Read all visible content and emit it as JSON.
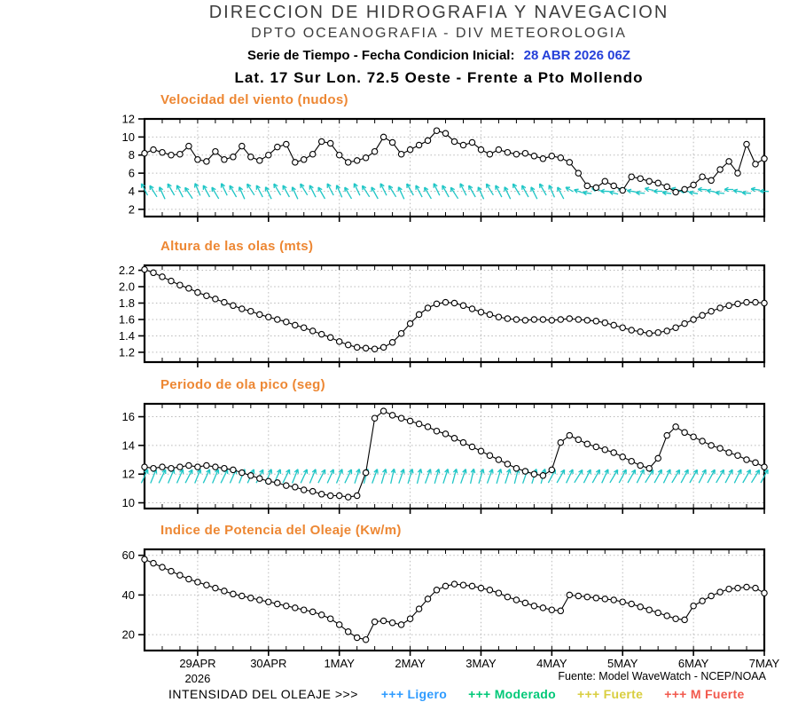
{
  "header": {
    "line1": "DIRECCION DE HIDROGRAFIA Y NAVEGACION",
    "line2": "DPTO OCEANOGRAFIA - DIV METEOROLOGIA",
    "line3_label": "Serie de Tiempo - Fecha Condicion Inicial:",
    "line3_value": "28 ABR 2026 06Z",
    "line4": "Lat. 17 Sur  Lon. 72.5 Oeste - Frente a Pto Mollendo"
  },
  "footer": {
    "source": "Fuente: Model WaveWatch - NCEP/NOAA",
    "legend_label": "INTENSIDAD DEL OLEAJE >>>",
    "legend_items": [
      {
        "label": "+++ Ligero",
        "color": "#2e9bff"
      },
      {
        "label": "+++ Moderado",
        "color": "#00c878"
      },
      {
        "label": "+++ Fuerte",
        "color": "#d9ce3f"
      },
      {
        "label": "+++ M Fuerte",
        "color": "#f2594d"
      }
    ]
  },
  "colors": {
    "accent_orange": "#ed8733",
    "date_blue": "#2540d9",
    "arrow_cyan": "#1fc6c6",
    "grid_gray": "#b9b9b9"
  },
  "chart_data": {
    "type": "line",
    "x": {
      "points": 71,
      "interval_hours": 3,
      "tick_t": [
        6,
        14,
        22,
        30,
        38,
        46,
        54,
        62,
        70
      ],
      "tick_labels": [
        "29APR",
        "30APR",
        "1MAY",
        "2MAY",
        "3MAY",
        "4MAY",
        "5MAY",
        "6MAY",
        "7MAY"
      ],
      "year_label": "2026"
    },
    "charts": [
      {
        "id": "wind-speed",
        "title": "Velocidad del viento (nudos)",
        "ylim": [
          1.2,
          12.0
        ],
        "yticks": [
          2,
          4,
          6,
          8,
          10,
          12
        ],
        "ytick_labels": [
          "2",
          "4",
          "6",
          "8",
          "10",
          "12"
        ],
        "values": [
          8.2,
          8.6,
          8.3,
          8.0,
          8.1,
          9.0,
          7.5,
          7.3,
          8.4,
          7.5,
          7.8,
          9.0,
          7.8,
          7.4,
          8.0,
          8.9,
          9.2,
          7.2,
          7.5,
          8.1,
          9.5,
          9.3,
          8.0,
          7.2,
          7.4,
          7.7,
          8.4,
          10.0,
          9.4,
          8.1,
          8.6,
          9.1,
          9.6,
          10.7,
          10.4,
          9.5,
          9.1,
          9.4,
          8.6,
          8.1,
          8.6,
          8.3,
          8.1,
          8.2,
          7.9,
          7.6,
          7.9,
          7.7,
          7.2,
          6.0,
          4.6,
          4.4,
          5.1,
          4.6,
          4.1,
          5.6,
          5.4,
          5.1,
          4.9,
          4.5,
          3.9,
          4.2,
          4.7,
          5.6,
          5.2,
          6.4,
          7.3,
          6.0,
          9.2,
          7.0,
          7.6
        ],
        "arrows": {
          "y": 4.0,
          "color": "#1fc6c6",
          "len": 15,
          "len_short": 10,
          "short_from_index": 48,
          "jitter": 2,
          "angles": [
            118,
            122,
            115,
            120,
            117,
            124,
            113,
            119,
            121,
            116,
            120,
            114,
            123,
            118,
            116,
            121,
            119,
            115,
            122,
            117,
            120,
            118,
            114,
            121,
            116,
            123,
            119,
            117,
            122,
            115,
            120,
            118,
            121,
            116,
            119,
            123,
            117,
            120,
            115,
            122,
            118,
            116,
            121,
            119,
            117,
            120,
            114,
            118,
            150,
            160,
            172,
            168,
            178,
            165,
            182,
            170,
            175,
            168,
            180,
            172,
            166,
            176,
            170,
            178,
            168,
            174,
            180,
            170,
            176,
            172,
            178
          ]
        }
      },
      {
        "id": "wave-height",
        "title": "Altura de las olas (mts)",
        "ylim": [
          1.08,
          2.26
        ],
        "yticks": [
          1.2,
          1.4,
          1.6,
          1.8,
          2.0,
          2.2
        ],
        "ytick_labels": [
          "1.2",
          "1.4",
          "1.6",
          "1.8",
          "2.0",
          "2.2"
        ],
        "values": [
          2.21,
          2.17,
          2.12,
          2.07,
          2.02,
          1.98,
          1.93,
          1.89,
          1.85,
          1.81,
          1.77,
          1.73,
          1.7,
          1.66,
          1.63,
          1.6,
          1.57,
          1.53,
          1.5,
          1.46,
          1.42,
          1.38,
          1.33,
          1.29,
          1.26,
          1.25,
          1.24,
          1.26,
          1.32,
          1.43,
          1.55,
          1.66,
          1.74,
          1.79,
          1.81,
          1.8,
          1.77,
          1.73,
          1.69,
          1.66,
          1.63,
          1.61,
          1.6,
          1.59,
          1.6,
          1.6,
          1.59,
          1.6,
          1.61,
          1.6,
          1.59,
          1.58,
          1.56,
          1.53,
          1.5,
          1.47,
          1.45,
          1.43,
          1.44,
          1.46,
          1.5,
          1.55,
          1.6,
          1.65,
          1.7,
          1.74,
          1.77,
          1.79,
          1.81,
          1.81,
          1.8
        ]
      },
      {
        "id": "peak-wave-period",
        "title": "Periodo de ola pico (seg)",
        "ylim": [
          9.6,
          16.9
        ],
        "yticks": [
          10,
          12,
          14,
          16
        ],
        "ytick_labels": [
          "10",
          "12",
          "14",
          "16"
        ],
        "values": [
          12.5,
          12.4,
          12.5,
          12.4,
          12.5,
          12.6,
          12.5,
          12.6,
          12.5,
          12.4,
          12.3,
          12.1,
          11.9,
          11.7,
          11.5,
          11.4,
          11.2,
          11.1,
          10.9,
          10.8,
          10.6,
          10.5,
          10.5,
          10.4,
          10.5,
          12.1,
          15.9,
          16.4,
          16.1,
          15.9,
          15.7,
          15.5,
          15.3,
          15.0,
          14.8,
          14.5,
          14.2,
          13.9,
          13.6,
          13.3,
          13.0,
          12.7,
          12.4,
          12.2,
          12.0,
          11.9,
          12.3,
          14.2,
          14.7,
          14.4,
          14.1,
          13.9,
          13.7,
          13.5,
          13.2,
          12.9,
          12.6,
          12.4,
          13.1,
          14.7,
          15.3,
          14.9,
          14.6,
          14.3,
          14.0,
          13.8,
          13.5,
          13.3,
          13.0,
          12.8,
          12.5
        ],
        "arrows": {
          "y": 11.85,
          "color": "#1fc6c6",
          "len": 17,
          "jitter": 0,
          "angles": [
            65,
            68,
            64,
            67,
            66,
            63,
            68,
            65,
            67,
            64,
            66,
            68,
            65,
            63,
            67,
            66,
            64,
            68,
            65,
            67,
            63,
            66,
            68,
            64,
            72,
            75,
            70,
            74,
            77,
            71,
            73,
            76,
            70,
            74,
            72,
            75,
            71,
            77,
            73,
            70,
            74,
            72,
            76,
            71,
            73,
            75,
            62,
            60,
            64,
            58,
            63,
            61,
            65,
            59,
            62,
            60,
            63,
            58,
            61,
            64,
            59,
            62,
            60,
            63,
            61,
            59,
            62,
            64,
            60,
            58,
            62
          ]
        }
      },
      {
        "id": "wave-power-index",
        "title": "Indice de Potencia del Oleaje (Kw/m)",
        "ylim": [
          12,
          63
        ],
        "yticks": [
          20,
          40,
          60
        ],
        "ytick_labels": [
          "20",
          "40",
          "60"
        ],
        "show_x_labels": true,
        "values": [
          58,
          56,
          54,
          52,
          50,
          48,
          46.5,
          45,
          43.5,
          42,
          40.5,
          39.5,
          38.5,
          37.5,
          36.5,
          35.5,
          34.5,
          33.5,
          32.5,
          31.5,
          30,
          28,
          25,
          21.5,
          18.5,
          17.5,
          26.5,
          27,
          26,
          25,
          28,
          33,
          38,
          42.5,
          44.5,
          45.5,
          45,
          44.5,
          43.5,
          42.5,
          41,
          39,
          37.5,
          36,
          34.5,
          33.5,
          32.5,
          32,
          40,
          39.5,
          39,
          38.5,
          38,
          37.5,
          36.5,
          35.5,
          34,
          32.5,
          31,
          29.5,
          28,
          27.5,
          34.5,
          37,
          39.5,
          41.5,
          43,
          43.5,
          44,
          43.5,
          41
        ]
      }
    ]
  }
}
